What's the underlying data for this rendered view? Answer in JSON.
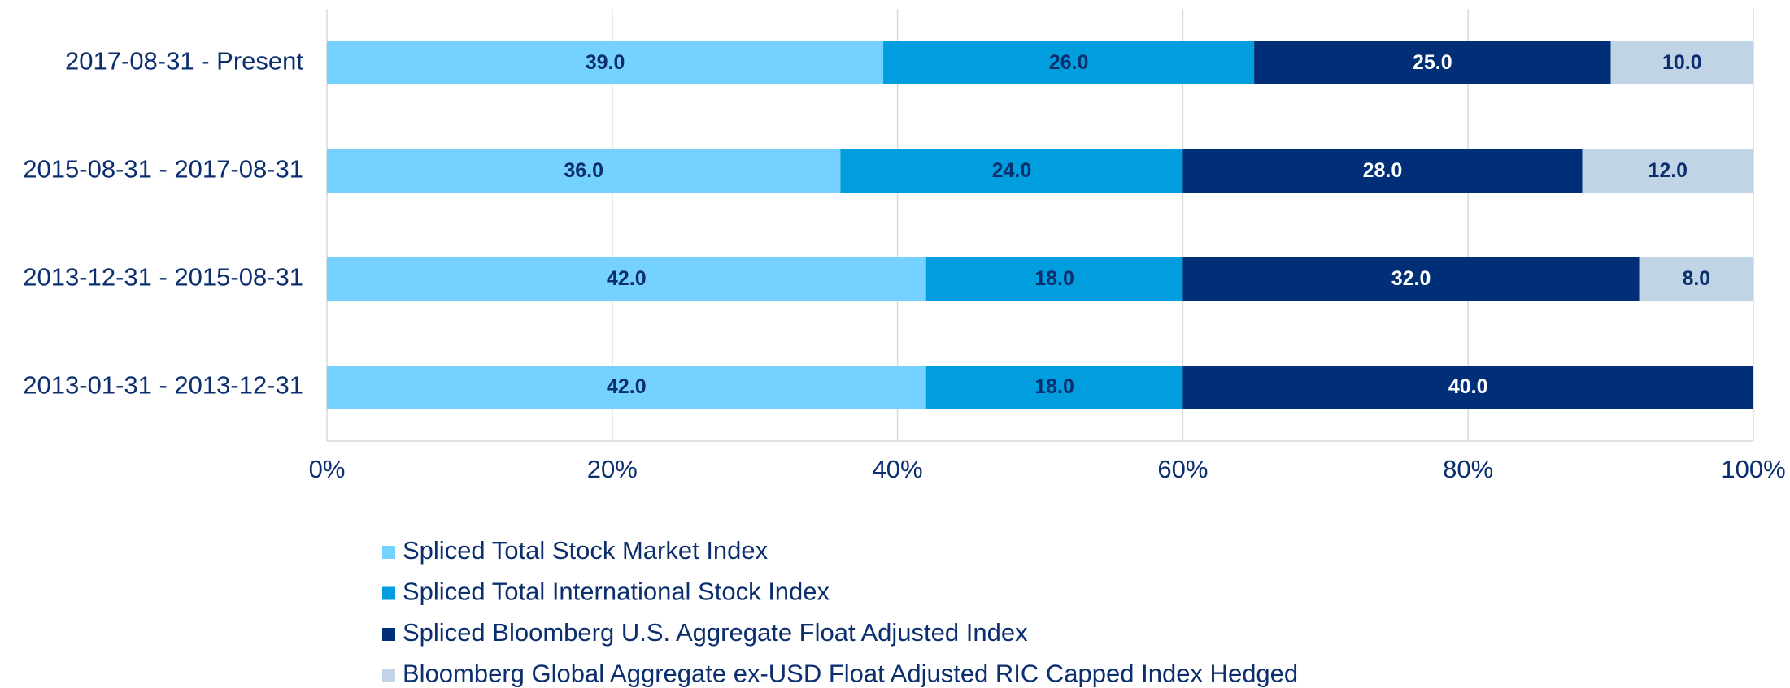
{
  "chart_data": {
    "type": "stacked-barh",
    "categories": [
      "2017-08-31 - Present",
      "2015-08-31 - 2017-08-31",
      "2013-12-31 - 2015-08-31",
      "2013-01-31 - 2013-12-31"
    ],
    "series": [
      {
        "name": "Spliced Total Stock Market Index",
        "color": "#75d1ff",
        "label_color": "#0b2e6e",
        "values": [
          39,
          36,
          42,
          42
        ],
        "value_labels": [
          "39.0",
          "36.0",
          "42.0",
          "42.0"
        ]
      },
      {
        "name": "Spliced Total International Stock Index",
        "color": "#009ddf",
        "label_color": "#0b2e6e",
        "values": [
          26,
          24,
          18,
          18
        ],
        "value_labels": [
          "26.0",
          "24.0",
          "18.0",
          "18.0"
        ]
      },
      {
        "name": "Spliced Bloomberg U.S. Aggregate Float Adjusted Index",
        "color": "#002f78",
        "label_color": "#ffffff",
        "values": [
          25,
          28,
          32,
          40
        ],
        "value_labels": [
          "25.0",
          "28.0",
          "32.0",
          "40.0"
        ]
      },
      {
        "name": "Bloomberg Global Aggregate ex-USD Float Adjusted RIC Capped Index Hedged",
        "color": "#c1d4e6",
        "label_color": "#0b2e6e",
        "values": [
          10,
          12,
          8,
          null
        ],
        "value_labels": [
          "10.0",
          "12.0",
          "8.0",
          null
        ]
      }
    ],
    "xlim": [
      0,
      100
    ],
    "xticks": [
      {
        "value": 0,
        "label": "0%"
      },
      {
        "value": 20,
        "label": "20%"
      },
      {
        "value": 40,
        "label": "40%"
      },
      {
        "value": 60,
        "label": "60%"
      },
      {
        "value": 80,
        "label": "80%"
      },
      {
        "value": 100,
        "label": "100%"
      }
    ],
    "grid": true,
    "legend": "bottom"
  }
}
